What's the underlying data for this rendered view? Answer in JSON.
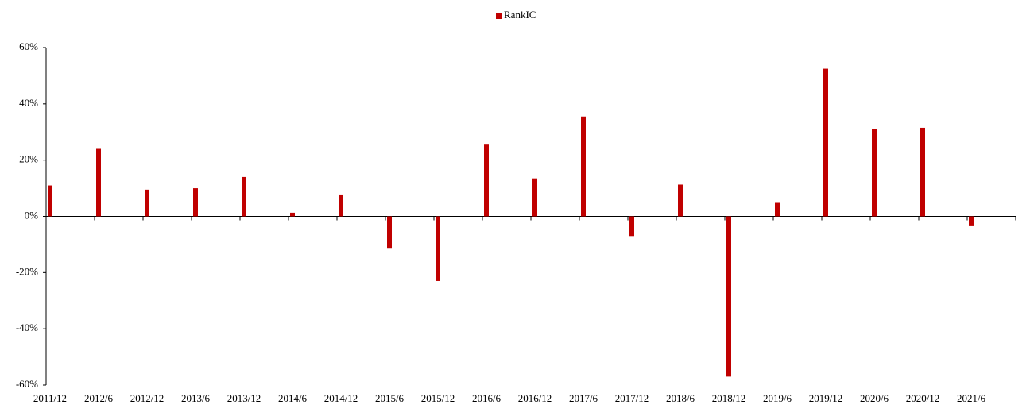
{
  "chart_data": {
    "type": "bar",
    "categories": [
      "2011/12",
      "2012/6",
      "2012/12",
      "2013/6",
      "2013/12",
      "2014/6",
      "2014/12",
      "2015/6",
      "2015/12",
      "2016/6",
      "2016/12",
      "2017/6",
      "2017/12",
      "2018/6",
      "2018/12",
      "2019/6",
      "2019/12",
      "2020/6",
      "2020/12",
      "2021/6"
    ],
    "series": [
      {
        "name": "RankIC",
        "color": "#c00000",
        "values": [
          11,
          24,
          9.5,
          10,
          14,
          1.3,
          7.5,
          -11.5,
          -23,
          25.5,
          13.5,
          35.5,
          -7,
          11.3,
          -57,
          4.8,
          52.5,
          31,
          31.5,
          -3.5
        ]
      }
    ],
    "ylim": [
      -60,
      60
    ],
    "yticks": [
      {
        "value": -60,
        "label": "-60%"
      },
      {
        "value": -40,
        "label": "-40%"
      },
      {
        "value": -20,
        "label": "-20%"
      },
      {
        "value": 0,
        "label": "0%"
      },
      {
        "value": 20,
        "label": "20%"
      },
      {
        "value": 40,
        "label": "40%"
      },
      {
        "value": 60,
        "label": "60%"
      }
    ],
    "grid": false,
    "legend": "top"
  }
}
